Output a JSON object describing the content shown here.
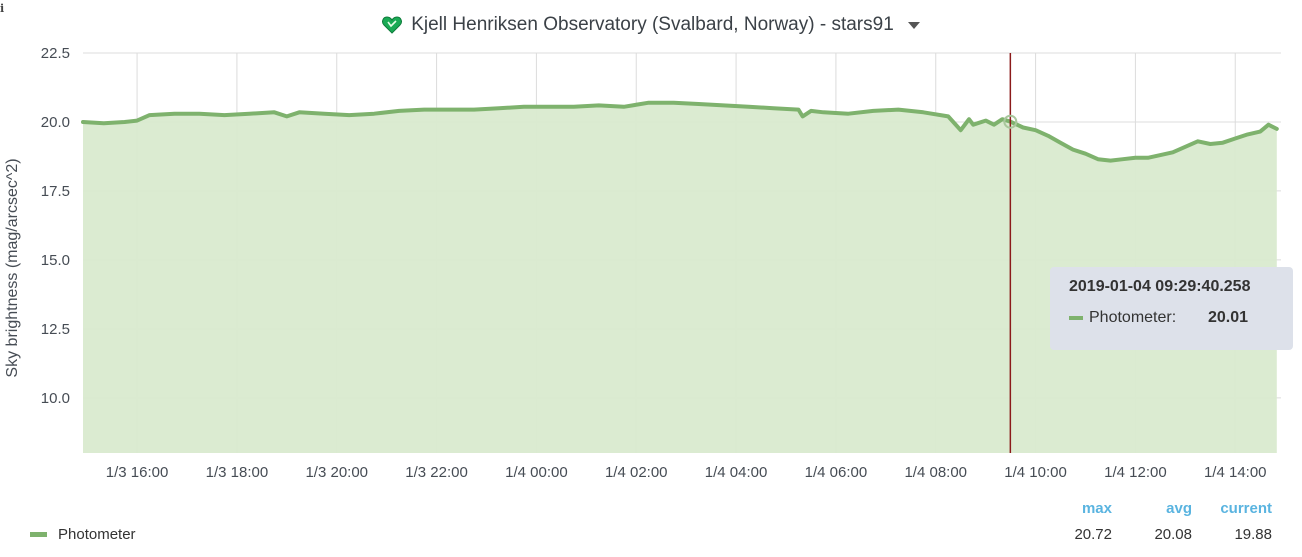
{
  "panel": {
    "title": "Kjell Henriksen Observatory (Svalbard, Norway) - stars91",
    "info_icon": "i",
    "title_icon": "heart-icon",
    "menu_icon": "caret-down-icon"
  },
  "colors": {
    "series": "#7eb26d",
    "fill": "#d9eacf",
    "cursor": "#8b1a1a",
    "legend_header": "#5ab4e0",
    "tooltip_bg": "#dde1ea"
  },
  "chart_data": {
    "type": "area",
    "ylabel": "Sky brightness (mag/arcsec^2)",
    "xlabel": "",
    "ylim": [
      8.0,
      22.5
    ],
    "yticks": [
      "22.5",
      "20.0",
      "17.5",
      "15.0",
      "12.5",
      "10.0"
    ],
    "xlim": [
      "2019-01-03 14:55",
      "2019-01-04 14:55"
    ],
    "xticks": [
      "1/3 16:00",
      "1/3 18:00",
      "1/3 20:00",
      "1/3 22:00",
      "1/4 00:00",
      "1/4 02:00",
      "1/4 04:00",
      "1/4 06:00",
      "1/4 08:00",
      "1/4 10:00",
      "1/4 12:00",
      "1/4 14:00"
    ],
    "grid": true,
    "series": [
      {
        "name": "Photometer",
        "x": [
          "2019-01-03 14:55",
          "2019-01-03 15:20",
          "2019-01-03 15:45",
          "2019-01-03 16:00",
          "2019-01-03 16:15",
          "2019-01-03 16:45",
          "2019-01-03 17:15",
          "2019-01-03 17:45",
          "2019-01-03 18:15",
          "2019-01-03 18:45",
          "2019-01-03 19:00",
          "2019-01-03 19:15",
          "2019-01-03 19:45",
          "2019-01-03 20:15",
          "2019-01-03 20:45",
          "2019-01-03 21:15",
          "2019-01-03 21:45",
          "2019-01-03 22:15",
          "2019-01-03 22:45",
          "2019-01-03 23:15",
          "2019-01-03 23:45",
          "2019-01-04 00:15",
          "2019-01-04 00:45",
          "2019-01-04 01:15",
          "2019-01-04 01:45",
          "2019-01-04 02:15",
          "2019-01-04 02:45",
          "2019-01-04 03:15",
          "2019-01-04 03:45",
          "2019-01-04 04:15",
          "2019-01-04 04:45",
          "2019-01-04 05:15",
          "2019-01-04 05:20",
          "2019-01-04 05:30",
          "2019-01-04 05:45",
          "2019-01-04 06:15",
          "2019-01-04 06:45",
          "2019-01-04 07:15",
          "2019-01-04 07:45",
          "2019-01-04 08:15",
          "2019-01-04 08:30",
          "2019-01-04 08:40",
          "2019-01-04 08:45",
          "2019-01-04 09:00",
          "2019-01-04 09:10",
          "2019-01-04 09:20",
          "2019-01-04 09:30",
          "2019-01-04 09:45",
          "2019-01-04 10:00",
          "2019-01-04 10:15",
          "2019-01-04 10:30",
          "2019-01-04 10:45",
          "2019-01-04 11:00",
          "2019-01-04 11:15",
          "2019-01-04 11:30",
          "2019-01-04 11:45",
          "2019-01-04 12:00",
          "2019-01-04 12:15",
          "2019-01-04 12:30",
          "2019-01-04 12:45",
          "2019-01-04 13:00",
          "2019-01-04 13:15",
          "2019-01-04 13:30",
          "2019-01-04 13:45",
          "2019-01-04 14:00",
          "2019-01-04 14:15",
          "2019-01-04 14:30",
          "2019-01-04 14:40",
          "2019-01-04 14:50"
        ],
        "y": [
          20.0,
          19.95,
          20.0,
          20.05,
          20.25,
          20.3,
          20.3,
          20.25,
          20.3,
          20.35,
          20.2,
          20.35,
          20.3,
          20.25,
          20.3,
          20.4,
          20.45,
          20.45,
          20.45,
          20.5,
          20.55,
          20.55,
          20.55,
          20.6,
          20.55,
          20.7,
          20.7,
          20.65,
          20.6,
          20.55,
          20.5,
          20.45,
          20.2,
          20.4,
          20.35,
          20.3,
          20.4,
          20.45,
          20.35,
          20.2,
          19.7,
          20.1,
          19.9,
          20.05,
          19.9,
          20.1,
          20.01,
          19.8,
          19.7,
          19.5,
          19.25,
          19.0,
          18.85,
          18.65,
          18.6,
          18.65,
          18.7,
          18.7,
          18.8,
          18.9,
          19.1,
          19.3,
          19.2,
          19.25,
          19.4,
          19.55,
          19.65,
          19.9,
          19.75
        ]
      }
    ]
  },
  "cursor": {
    "time": "2019-01-04 09:29:40.258",
    "series_label": "Photometer:",
    "value": "20.01",
    "value_num": 20.01
  },
  "legend": {
    "headers": [
      "max",
      "avg",
      "current"
    ],
    "series": [
      {
        "name": "Photometer",
        "max": "20.72",
        "avg": "20.08",
        "current": "19.88"
      }
    ]
  }
}
